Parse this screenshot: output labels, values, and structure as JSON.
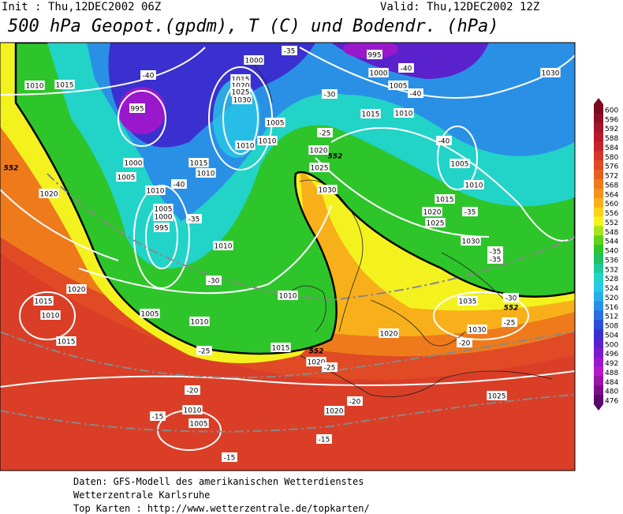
{
  "header": {
    "init": "Init : Thu,12DEC2002 06Z",
    "valid": "Valid: Thu,12DEC2002 12Z",
    "title": "500 hPa Geopot.(gpdm), T (C) und Bodendr. (hPa)"
  },
  "colorbar": [
    {
      "label": "600",
      "color": "#7a0a1e"
    },
    {
      "label": "596",
      "color": "#8e0f24"
    },
    {
      "label": "592",
      "color": "#a3142a"
    },
    {
      "label": "588",
      "color": "#b81a2a"
    },
    {
      "label": "584",
      "color": "#c9242a"
    },
    {
      "label": "580",
      "color": "#d6372a"
    },
    {
      "label": "576",
      "color": "#e04a25"
    },
    {
      "label": "572",
      "color": "#e8601f"
    },
    {
      "label": "568",
      "color": "#ee7a1c"
    },
    {
      "label": "564",
      "color": "#f3931a"
    },
    {
      "label": "560",
      "color": "#f8b01a"
    },
    {
      "label": "556",
      "color": "#fcd21c"
    },
    {
      "label": "552",
      "color": "#f4f21e"
    },
    {
      "label": "548",
      "color": "#a6e41e"
    },
    {
      "label": "544",
      "color": "#5fd31c"
    },
    {
      "label": "540",
      "color": "#2ec52a"
    },
    {
      "label": "536",
      "color": "#1fbf66"
    },
    {
      "label": "532",
      "color": "#1ec99c"
    },
    {
      "label": "528",
      "color": "#22d3c8"
    },
    {
      "label": "524",
      "color": "#28c8e6"
    },
    {
      "label": "520",
      "color": "#2aaeea"
    },
    {
      "label": "516",
      "color": "#2a90e6"
    },
    {
      "label": "512",
      "color": "#2a70e0"
    },
    {
      "label": "508",
      "color": "#2a50d8"
    },
    {
      "label": "504",
      "color": "#3a30d0"
    },
    {
      "label": "500",
      "color": "#5a22cc"
    },
    {
      "label": "496",
      "color": "#7a1ccc"
    },
    {
      "label": "492",
      "color": "#9a18cc"
    },
    {
      "label": "488",
      "color": "#b41ac8"
    },
    {
      "label": "484",
      "color": "#9a14a8"
    },
    {
      "label": "480",
      "color": "#7a1088"
    },
    {
      "label": "476",
      "color": "#5a0a68"
    }
  ],
  "map_labels": [
    "1000",
    "995",
    "1000",
    "1005",
    "-35",
    "-40",
    "-40",
    "1010",
    "1015",
    "1015",
    "1020",
    "1025",
    "1030",
    "-30",
    "-40",
    "1030",
    "995",
    "1015",
    "1010",
    "1005",
    "-25",
    "1010",
    "1010",
    "-40",
    "1020",
    "1000",
    "1015",
    "1025",
    "1005",
    "1010",
    "1005",
    "-40",
    "1030",
    "1010",
    "1020",
    "1010",
    "1015",
    "1005",
    "1000",
    "-35",
    "1020",
    "-35",
    "995",
    "1025",
    "1010",
    "1030",
    "-35",
    "-35",
    "-30",
    "1020",
    "1010",
    "1035",
    "-30",
    "1015",
    "1010",
    "1005",
    "1010",
    "-25",
    "1030",
    "1020",
    "1015",
    "-25",
    "1015",
    "-20",
    "1020",
    "-25",
    "-20",
    "-20",
    "1025",
    "1010",
    "1020",
    "-15",
    "1005",
    "-15",
    "-15",
    "552",
    "552",
    "552",
    "552"
  ],
  "footer": [
    "Daten: GFS-Modell des amerikanischen Wetterdienstes",
    "Wetterzentrale Karlsruhe",
    "Top Karten :  http://www.wetterzentrale.de/topkarten/"
  ]
}
